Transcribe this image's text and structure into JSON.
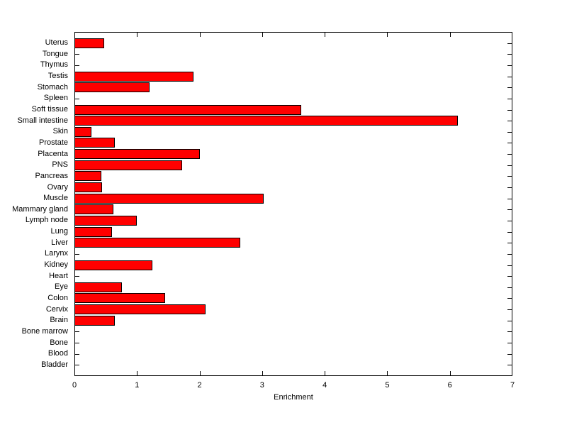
{
  "chart_data": {
    "type": "bar",
    "orientation": "horizontal",
    "title": "",
    "xlabel": "Enrichment",
    "ylabel": "",
    "xlim": [
      0,
      7
    ],
    "xticks": [
      0,
      1,
      2,
      3,
      4,
      5,
      6,
      7
    ],
    "xtick_labels": [
      "0",
      "1",
      "2",
      "3",
      "4",
      "5",
      "6",
      "7"
    ],
    "grid": false,
    "legend": false,
    "bar_fill_color": "#ff0000",
    "bar_edge_color": "#000000",
    "axis_color": "#000000",
    "background_color": "#ffffff",
    "categories": [
      "Uterus",
      "Tongue",
      "Thymus",
      "Testis",
      "Stomach",
      "Spleen",
      "Soft tissue",
      "Small intestine",
      "Skin",
      "Prostate",
      "Placenta",
      "PNS",
      "Pancreas",
      "Ovary",
      "Muscle",
      "Mammary gland",
      "Lymph node",
      "Lung",
      "Liver",
      "Larynx",
      "Kidney",
      "Heart",
      "Eye",
      "Colon",
      "Cervix",
      "Brain",
      "Bone marrow",
      "Bone",
      "Blood",
      "Bladder"
    ],
    "values": [
      0.48,
      0,
      0,
      1.9,
      1.2,
      0,
      3.63,
      6.13,
      0.27,
      0.65,
      2.0,
      1.72,
      0.43,
      0.44,
      3.02,
      0.62,
      1.0,
      0.6,
      2.65,
      0,
      1.25,
      0,
      0.76,
      1.45,
      2.1,
      0.65,
      0,
      0,
      0,
      0
    ]
  }
}
